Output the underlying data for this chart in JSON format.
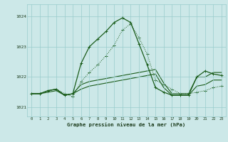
{
  "title": "Graphe pression niveau de la mer (hPa)",
  "bg_color": "#cce8e8",
  "grid_color": "#99cccc",
  "line_color": "#1a5c1a",
  "xlim": [
    -0.5,
    23.5
  ],
  "ylim": [
    1020.7,
    1024.4
  ],
  "yticks": [
    1021,
    1022,
    1023,
    1024
  ],
  "xticks": [
    0,
    1,
    2,
    3,
    4,
    5,
    6,
    7,
    8,
    9,
    10,
    11,
    12,
    13,
    14,
    15,
    16,
    17,
    18,
    19,
    20,
    21,
    22,
    23
  ],
  "series_dotted": {
    "x": [
      0,
      1,
      2,
      3,
      4,
      5,
      6,
      7,
      8,
      9,
      10,
      11,
      12,
      13,
      14,
      15,
      16,
      17,
      18,
      19,
      20,
      21,
      22,
      23
    ],
    "y": [
      1021.45,
      1021.45,
      1021.55,
      1021.6,
      1021.45,
      1021.35,
      1021.85,
      1022.15,
      1022.4,
      1022.7,
      1023.05,
      1023.55,
      1023.75,
      1023.3,
      1022.75,
      1021.9,
      1021.75,
      1021.6,
      1021.45,
      1021.45,
      1021.5,
      1021.55,
      1021.65,
      1021.7
    ]
  },
  "series_peak": {
    "x": [
      0,
      1,
      2,
      3,
      4,
      5,
      6,
      7,
      8,
      9,
      10,
      11,
      12,
      13,
      14,
      15,
      16,
      17,
      18,
      19,
      20,
      21,
      22,
      23
    ],
    "y": [
      1021.45,
      1021.45,
      1021.55,
      1021.6,
      1021.4,
      1021.45,
      1022.45,
      1023.0,
      1023.25,
      1023.5,
      1023.8,
      1023.95,
      1023.8,
      1023.1,
      1022.4,
      1021.65,
      1021.5,
      1021.4,
      1021.4,
      1021.4,
      1022.0,
      1022.2,
      1022.1,
      1022.05
    ]
  },
  "series_flat1": {
    "x": [
      0,
      1,
      2,
      3,
      4,
      5,
      6,
      7,
      8,
      9,
      10,
      11,
      12,
      13,
      14,
      15,
      16,
      17,
      18,
      19,
      20,
      21,
      22,
      23
    ],
    "y": [
      1021.45,
      1021.45,
      1021.5,
      1021.55,
      1021.4,
      1021.45,
      1021.6,
      1021.7,
      1021.75,
      1021.8,
      1021.85,
      1021.9,
      1021.95,
      1022.0,
      1022.05,
      1022.1,
      1021.65,
      1021.4,
      1021.4,
      1021.4,
      1021.7,
      1021.75,
      1021.9,
      1021.9
    ]
  },
  "series_flat2": {
    "x": [
      0,
      1,
      2,
      3,
      4,
      5,
      6,
      7,
      8,
      9,
      10,
      11,
      12,
      13,
      14,
      15,
      16,
      17,
      18,
      19,
      20,
      21,
      22,
      23
    ],
    "y": [
      1021.45,
      1021.45,
      1021.55,
      1021.6,
      1021.4,
      1021.45,
      1021.75,
      1021.85,
      1021.9,
      1021.95,
      1022.0,
      1022.05,
      1022.1,
      1022.15,
      1022.2,
      1022.25,
      1021.8,
      1021.45,
      1021.45,
      1021.45,
      1022.0,
      1022.0,
      1022.15,
      1022.15
    ]
  }
}
